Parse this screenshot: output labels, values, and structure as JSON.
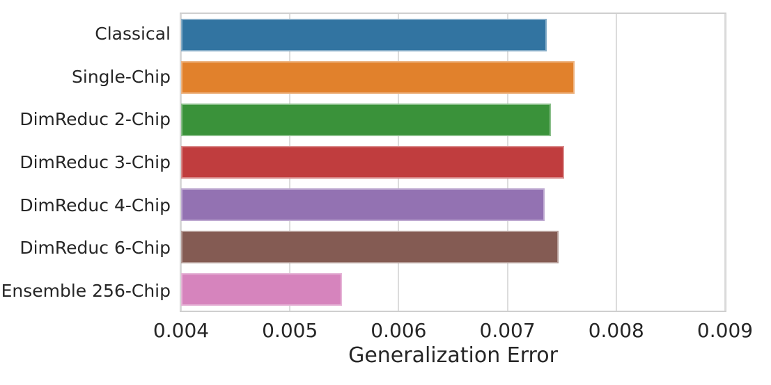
{
  "figure": {
    "background_color": "#ffffff",
    "text_color": "#262626",
    "grid_color": "#dcdcdc",
    "spine_color": "#cfcfcf"
  },
  "chart_data": {
    "type": "bar",
    "orientation": "horizontal",
    "title": "",
    "xlabel": "Generalization Error",
    "ylabel": "",
    "categories": [
      "Classical",
      "Single-Chip",
      "DimReduc 2-Chip",
      "DimReduc 3-Chip",
      "DimReduc 4-Chip",
      "DimReduc 6-Chip",
      "Ensemble 256-Chip"
    ],
    "values": [
      0.00736,
      0.00762,
      0.0074,
      0.00752,
      0.00734,
      0.00747,
      0.00548
    ],
    "bar_colors": [
      "#3274a1",
      "#e1812c",
      "#3a923a",
      "#c03d3e",
      "#9372b2",
      "#845b53",
      "#d684bd"
    ],
    "bar_edge_colors": [
      "#84acc7",
      "#edb380",
      "#89be89",
      "#d98b8b",
      "#beaad1",
      "#b59d98",
      "#e6b5d7"
    ],
    "xlim": [
      0.004,
      0.009
    ],
    "xticks": [
      0.004,
      0.005,
      0.006,
      0.007,
      0.008,
      0.009
    ],
    "xtick_labels": [
      "0.004",
      "0.005",
      "0.006",
      "0.007",
      "0.008",
      "0.009"
    ],
    "grid": "vertical-gridlines-on",
    "legend": "none"
  }
}
